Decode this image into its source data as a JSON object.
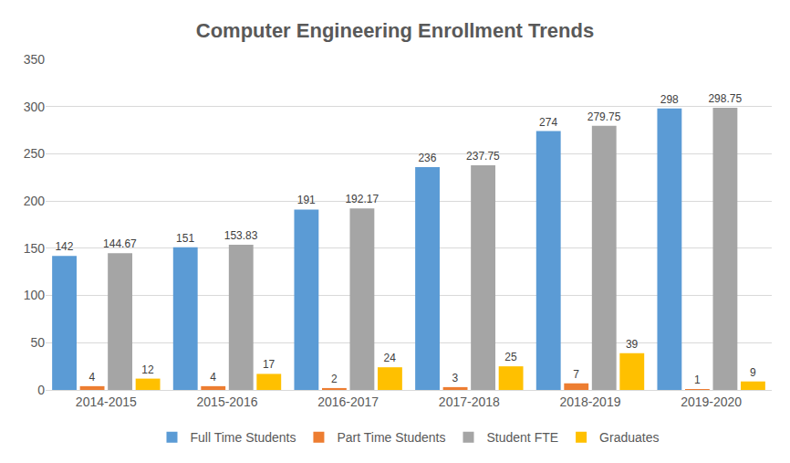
{
  "chart_data": {
    "type": "bar",
    "title": "Computer Engineering Enrollment Trends",
    "categories": [
      "2014-2015",
      "2015-2016",
      "2016-2017",
      "2017-2018",
      "2018-2019",
      "2019-2020"
    ],
    "series": [
      {
        "name": "Full Time Students",
        "color": "#5b9bd5",
        "values": [
          142,
          151,
          191,
          236,
          274,
          298
        ]
      },
      {
        "name": "Part Time Students",
        "color": "#ed7d31",
        "values": [
          4,
          4,
          2,
          3,
          7,
          1
        ]
      },
      {
        "name": "Student FTE",
        "color": "#a5a5a5",
        "values": [
          144.67,
          153.83,
          192.17,
          237.75,
          279.75,
          298.75
        ]
      },
      {
        "name": "Graduates",
        "color": "#ffc000",
        "values": [
          12,
          17,
          24,
          25,
          39,
          9
        ]
      }
    ],
    "ylim": [
      0,
      350
    ],
    "yticks": [
      0,
      50,
      100,
      150,
      200,
      250,
      300,
      350
    ],
    "grid": true,
    "legend": "bottom",
    "data_labels": true
  }
}
